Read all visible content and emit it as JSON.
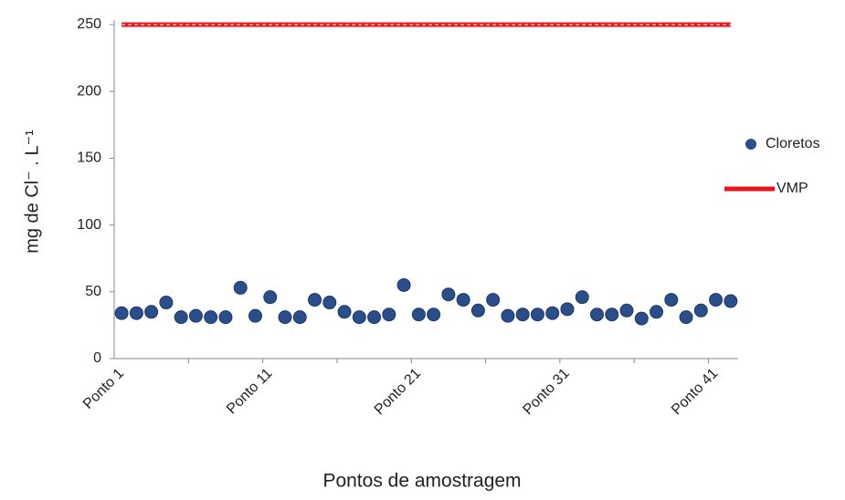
{
  "chart_data": {
    "type": "scatter",
    "y_label": "mg de Cl⁻ . L⁻¹",
    "x_label": "Pontos de amostragem",
    "categories": [
      "Ponto 1",
      null,
      null,
      null,
      null,
      null,
      null,
      null,
      null,
      null,
      "Ponto 11",
      null,
      null,
      null,
      null,
      null,
      null,
      null,
      null,
      null,
      "Ponto 21",
      null,
      null,
      null,
      null,
      null,
      null,
      null,
      null,
      null,
      "Ponto 31",
      null,
      null,
      null,
      null,
      null,
      null,
      null,
      null,
      null,
      "Ponto 41",
      null
    ],
    "series": [
      {
        "name": "Cloretos",
        "color": "#2a4e8a",
        "kind": "marker",
        "values": [
          34,
          34,
          35,
          42,
          31,
          32,
          31,
          31,
          53,
          32,
          46,
          31,
          31,
          44,
          42,
          35,
          31,
          31,
          33,
          55,
          33,
          33,
          48,
          44,
          36,
          44,
          32,
          33,
          33,
          34,
          37,
          46,
          33,
          33,
          36,
          30,
          35,
          44,
          31,
          36,
          44,
          43
        ]
      },
      {
        "name": "VMP",
        "color": "#e8141c",
        "kind": "line",
        "values": [
          250,
          250,
          250,
          250,
          250,
          250,
          250,
          250,
          250,
          250,
          250,
          250,
          250,
          250,
          250,
          250,
          250,
          250,
          250,
          250,
          250,
          250,
          250,
          250,
          250,
          250,
          250,
          250,
          250,
          250,
          250,
          250,
          250,
          250,
          250,
          250,
          250,
          250,
          250,
          250,
          250,
          250
        ]
      }
    ],
    "ylim": [
      0,
      250
    ],
    "yticks": [
      0,
      50,
      100,
      150,
      200,
      250
    ],
    "legend": "right"
  }
}
